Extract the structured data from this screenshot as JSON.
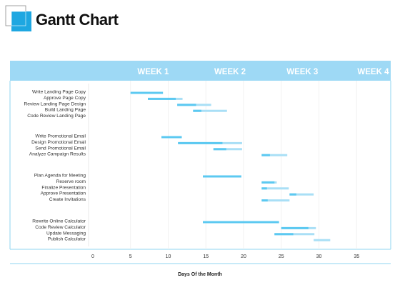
{
  "page": {
    "title": "Gantt Chart"
  },
  "colors": {
    "header": "#9ed9f5",
    "bar": "#5cc9f1",
    "bar_light": "#a9dff6",
    "accent": "#1ea7e1"
  },
  "chart_data": {
    "type": "gantt",
    "title": "",
    "xlabel": "Days Of the Month",
    "ylabel": "",
    "xlim": [
      0,
      39
    ],
    "x_ticks": [
      0,
      5,
      10,
      15,
      20,
      25,
      30,
      35
    ],
    "weeks": [
      {
        "label": "WEEK 1",
        "center": 8
      },
      {
        "label": "WEEK 2",
        "center": 18.2
      },
      {
        "label": "WEEK 3",
        "center": 27.8
      },
      {
        "label": "WEEK 4",
        "center": 37.2
      }
    ],
    "groups": [
      {
        "tasks": [
          {
            "name": "Write Landing Page Copy",
            "start": 5,
            "end": 9.3,
            "planned_end": 9.3
          },
          {
            "name": "Approve Page Copy",
            "start": 7.3,
            "end": 11.0,
            "planned_end": 11.9
          },
          {
            "name": "Review Landing Page Design",
            "start": 11.2,
            "end": 13.7,
            "planned_end": 15.7
          },
          {
            "name": "Build Landing Page",
            "start": 13.3,
            "end": 14.4,
            "planned_end": 17.8
          },
          {
            "name": "Code Review Landing Page",
            "start": null,
            "end": null,
            "planned_end": null
          }
        ]
      },
      {
        "tasks": [
          {
            "name": "Write Promotional Email",
            "start": 9.1,
            "end": 11.8,
            "planned_end": 11.8
          },
          {
            "name": "Design Promotional Email",
            "start": 11.3,
            "end": 17.2,
            "planned_end": 19.8
          },
          {
            "name": "Send Promotional Email",
            "start": 16.0,
            "end": 17.7,
            "planned_end": 19.8
          },
          {
            "name": "Analyze  Campaign Results",
            "start": 22.4,
            "end": 23.5,
            "planned_end": 25.8
          }
        ]
      },
      {
        "tasks": [
          {
            "name": "Plan Agenda for Meeting",
            "start": 14.6,
            "end": 19.7,
            "planned_end": 19.7
          },
          {
            "name": "Reserve room",
            "start": 22.4,
            "end": 24.1,
            "planned_end": 24.4
          },
          {
            "name": "Finalize Presentation",
            "start": 22.4,
            "end": 23.1,
            "planned_end": 26.0
          },
          {
            "name": "Approve Presentation",
            "start": 26.1,
            "end": 27.0,
            "planned_end": 29.3
          },
          {
            "name": "Create Invitations",
            "start": 22.4,
            "end": 23.2,
            "planned_end": 26.1
          }
        ]
      },
      {
        "tasks": [
          {
            "name": "Rewrite Online Calculator",
            "start": 14.6,
            "end": 24.7,
            "planned_end": 24.7
          },
          {
            "name": "Code Review Calculator",
            "start": 25.0,
            "end": 28.6,
            "planned_end": 29.6
          },
          {
            "name": "Update Messaging",
            "start": 24.1,
            "end": 26.6,
            "planned_end": 29.4
          },
          {
            "name": "Publish Calculator",
            "start": 29.3,
            "end": 29.3,
            "planned_end": 31.5
          }
        ]
      }
    ]
  }
}
